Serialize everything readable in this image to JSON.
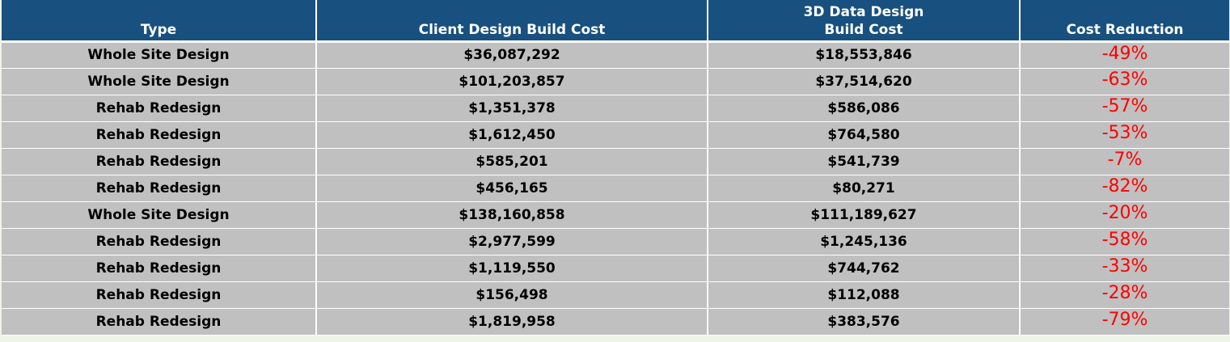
{
  "table": {
    "headers": {
      "type": "Type",
      "client_cost": "Client Design Build Cost",
      "data_cost_line1": "3D Data Design",
      "data_cost_line2": "Build Cost",
      "reduction": "Cost Reduction"
    },
    "rows": [
      {
        "type": "Whole Site Design",
        "client_cost": "$36,087,292",
        "data_cost": "$18,553,846",
        "reduction": "-49%"
      },
      {
        "type": "Whole Site Design",
        "client_cost": "$101,203,857",
        "data_cost": "$37,514,620",
        "reduction": "-63%"
      },
      {
        "type": "Rehab Redesign",
        "client_cost": "$1,351,378",
        "data_cost": "$586,086",
        "reduction": "-57%"
      },
      {
        "type": "Rehab Redesign",
        "client_cost": "$1,612,450",
        "data_cost": "$764,580",
        "reduction": "-53%"
      },
      {
        "type": "Rehab Redesign",
        "client_cost": "$585,201",
        "data_cost": "$541,739",
        "reduction": "-7%"
      },
      {
        "type": "Rehab Redesign",
        "client_cost": "$456,165",
        "data_cost": "$80,271",
        "reduction": "-82%"
      },
      {
        "type": "Whole Site Design",
        "client_cost": "$138,160,858",
        "data_cost": "$111,189,627",
        "reduction": "-20%"
      },
      {
        "type": "Rehab Redesign",
        "client_cost": "$2,977,599",
        "data_cost": "$1,245,136",
        "reduction": "-58%"
      },
      {
        "type": "Rehab Redesign",
        "client_cost": "$1,119,550",
        "data_cost": "$744,762",
        "reduction": "-33%"
      },
      {
        "type": "Rehab Redesign",
        "client_cost": "$156,498",
        "data_cost": "$112,088",
        "reduction": "-28%"
      },
      {
        "type": "Rehab Redesign",
        "client_cost": "$1,819,958",
        "data_cost": "$383,576",
        "reduction": "-79%"
      }
    ]
  },
  "colors": {
    "header_bg": "#18507f",
    "header_text": "#ffffff",
    "cell_bg": "#c0c0c0",
    "reduction_text": "#ff0000",
    "page_bg": "#eef4e8"
  }
}
